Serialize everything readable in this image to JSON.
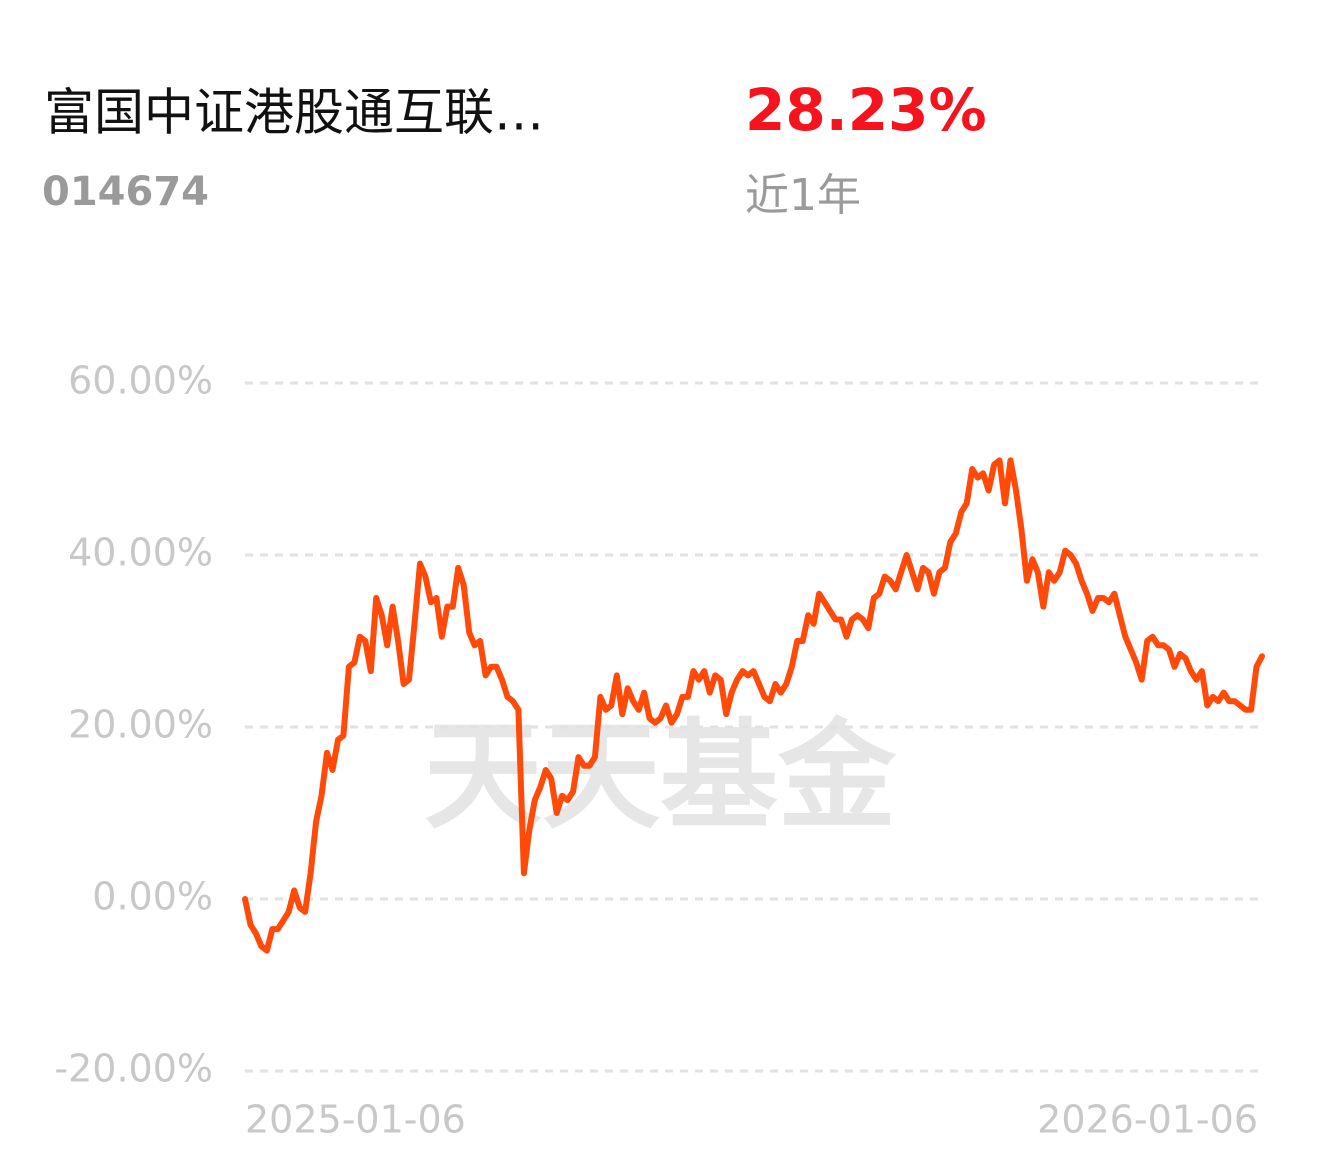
{
  "header": {
    "title": "富国中证港股通互联…",
    "code": "014674",
    "return": "28.23%",
    "period": "近1年"
  },
  "chart_data": {
    "type": "line",
    "watermark": "天天基金",
    "categories": [
      "2025-01-06",
      null,
      null,
      null,
      null,
      null,
      null,
      null,
      null,
      null,
      null,
      null,
      null,
      null,
      null,
      null,
      null,
      null,
      null,
      null,
      null,
      null,
      null,
      null,
      null,
      null,
      null,
      null,
      null,
      null,
      null,
      null,
      null,
      null,
      null,
      null,
      null,
      null,
      null,
      null,
      null,
      null,
      null,
      null,
      null,
      null,
      null,
      null,
      null,
      null,
      null,
      null,
      null,
      null,
      null,
      null,
      null,
      null,
      null,
      null,
      null,
      null,
      null,
      null,
      null,
      null,
      null,
      null,
      null,
      null,
      null,
      null,
      null,
      null,
      null,
      null,
      null,
      null,
      null,
      null,
      null,
      null,
      null,
      null,
      null,
      null,
      null,
      null,
      null,
      null,
      null,
      null,
      null,
      null,
      null,
      null,
      null,
      null,
      null,
      null,
      null,
      null,
      null,
      null,
      null,
      null,
      null,
      null,
      null,
      null,
      null,
      null,
      null,
      null,
      null,
      null,
      null,
      null,
      null,
      null,
      null,
      null,
      null,
      null,
      null,
      null,
      null,
      null,
      null,
      null,
      null,
      null,
      null,
      null,
      null,
      null,
      null,
      null,
      null,
      null,
      null,
      null,
      null,
      null,
      null,
      null,
      null,
      null,
      null,
      null,
      null,
      null,
      null,
      null,
      null,
      null,
      null,
      null,
      null,
      null,
      null,
      null,
      null,
      null,
      null,
      null,
      null,
      null,
      null,
      null,
      null,
      null,
      null,
      null,
      null,
      null,
      null,
      null,
      null,
      null,
      null,
      null,
      null,
      null,
      null,
      null,
      "2026-01-06"
    ],
    "series": [
      {
        "color": "#ff4a0a",
        "values": [
          0,
          -3,
          -4,
          -5.5,
          -6,
          -3.5,
          -3.5,
          -2.5,
          -1.5,
          1,
          -1,
          -1.5,
          3,
          9,
          12,
          17,
          15,
          18.5,
          19,
          27,
          27.5,
          30.5,
          30,
          26.5,
          35,
          33,
          29.5,
          34,
          30,
          25,
          25.5,
          32,
          39,
          37.5,
          34.5,
          35,
          30.5,
          34,
          34,
          38.5,
          36.5,
          31,
          29.5,
          30,
          26,
          27,
          27,
          25.5,
          23.5,
          23,
          22,
          3,
          8,
          11.5,
          13,
          15,
          14,
          10,
          12,
          11.5,
          12.5,
          16.5,
          15.5,
          15.5,
          16.5,
          23.5,
          22,
          22.5,
          26,
          21.5,
          24.5,
          23,
          22,
          24,
          21,
          20.5,
          21,
          22.5,
          20.5,
          21.5,
          23.5,
          23.5,
          26.5,
          25.5,
          26.5,
          24,
          26,
          25.5,
          21.5,
          24,
          25.5,
          26.5,
          26,
          26.5,
          25,
          23.5,
          23,
          25,
          24,
          25,
          27,
          30,
          30,
          33,
          32,
          35.5,
          34.5,
          33.5,
          32.5,
          32.5,
          30.5,
          32.5,
          33,
          32.5,
          31.5,
          35,
          35.5,
          37.5,
          37,
          36,
          38,
          40,
          38,
          36,
          38.5,
          38,
          35.5,
          38,
          38.5,
          41.5,
          42.5,
          45,
          46,
          50,
          49,
          49.5,
          47.5,
          50.5,
          51,
          46,
          51,
          47.5,
          43,
          37,
          39.5,
          38,
          34,
          38,
          37,
          38,
          40.5,
          40,
          39,
          37,
          35.5,
          33.5,
          35,
          35,
          34.5,
          35.5,
          33,
          30.5,
          29,
          27.5,
          25.5,
          30,
          30.5,
          29.5,
          29.5,
          29,
          27,
          28.5,
          28,
          26.5,
          25.5,
          26.5,
          22.5,
          23.5,
          23,
          24,
          23,
          23,
          22.5,
          22,
          22,
          27,
          28.23
        ]
      }
    ],
    "ylim": [
      -20,
      60
    ],
    "yticks": [
      {
        "value": -20,
        "label": "-20.00%"
      },
      {
        "value": 0,
        "label": "0.00%"
      },
      {
        "value": 20,
        "label": "20.00%"
      },
      {
        "value": 40,
        "label": "40.00%"
      },
      {
        "value": 60,
        "label": "60.00%"
      }
    ],
    "grid": true
  }
}
